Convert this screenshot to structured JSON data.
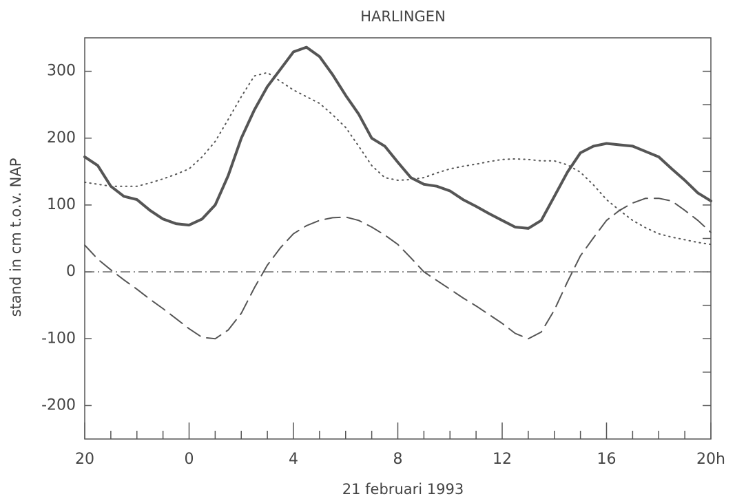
{
  "chart_data": {
    "type": "line",
    "title": "HARLINGEN",
    "x_label": "21 februari 1993",
    "y_label": "stand in cm t.o.v. NAP",
    "x": [
      -4,
      -3.5,
      -3,
      -2.5,
      -2,
      -1.5,
      -1,
      -0.5,
      0,
      0.5,
      1,
      1.5,
      2,
      2.5,
      3,
      3.5,
      4,
      4.5,
      5,
      5.5,
      6,
      6.5,
      7,
      7.5,
      8,
      8.5,
      9,
      9.5,
      10,
      10.5,
      11,
      11.5,
      12,
      12.5,
      13,
      13.5,
      14,
      14.5,
      15,
      15.5,
      16,
      16.5,
      17,
      17.5,
      18,
      18.5,
      19,
      19.5,
      20
    ],
    "series": [
      {
        "color": "#555555",
        "style": "solid",
        "values": [
          172,
          159,
          128,
          113,
          108,
          92,
          79,
          72,
          70,
          79,
          100,
          144,
          200,
          242,
          277,
          303,
          329,
          336,
          322,
          295,
          264,
          236,
          200,
          188,
          164,
          141,
          131,
          128,
          121,
          108,
          98,
          87,
          77,
          67,
          65,
          77,
          113,
          149,
          178,
          188,
          192,
          190,
          188,
          180,
          172,
          154,
          137,
          118,
          106
        ]
      },
      {
        "color": "#555555",
        "style": "dotted",
        "values": [
          134,
          131,
          128,
          128,
          128,
          133,
          139,
          146,
          154,
          172,
          195,
          228,
          262,
          293,
          298,
          285,
          272,
          262,
          252,
          235,
          216,
          188,
          159,
          141,
          137,
          138,
          141,
          148,
          154,
          158,
          161,
          165,
          168,
          169,
          168,
          166,
          166,
          160,
          149,
          130,
          108,
          92,
          77,
          66,
          57,
          52,
          48,
          44,
          41
        ]
      },
      {
        "color": "#555555",
        "style": "dashed",
        "values": [
          40,
          19,
          3,
          -12,
          -26,
          -41,
          -55,
          -70,
          -85,
          -98,
          -100,
          -87,
          -62,
          -24,
          10,
          36,
          57,
          69,
          77,
          81,
          82,
          77,
          67,
          55,
          41,
          21,
          0,
          -13,
          -26,
          -39,
          -51,
          -64,
          -77,
          -92,
          -100,
          -90,
          -57,
          -15,
          24,
          51,
          77,
          92,
          103,
          110,
          110,
          106,
          92,
          77,
          59
        ]
      }
    ],
    "hline": 0,
    "xlim": [
      -4,
      20
    ],
    "xticks": [
      {
        "value": -4,
        "label": "20"
      },
      0,
      4,
      8,
      12,
      16,
      {
        "value": 20,
        "label": "20h"
      }
    ],
    "xminorticks": [
      -3,
      -2,
      -1,
      1,
      2,
      3,
      5,
      6,
      7,
      9,
      10,
      11,
      13,
      14,
      15,
      17,
      18,
      19
    ],
    "ylim": [
      -250,
      350
    ],
    "yticks": [
      -200,
      -100,
      0,
      100,
      200,
      300
    ],
    "yminorticks": [
      -200,
      -150,
      -100,
      -50,
      0,
      50,
      100,
      150,
      200,
      250,
      300
    ]
  }
}
